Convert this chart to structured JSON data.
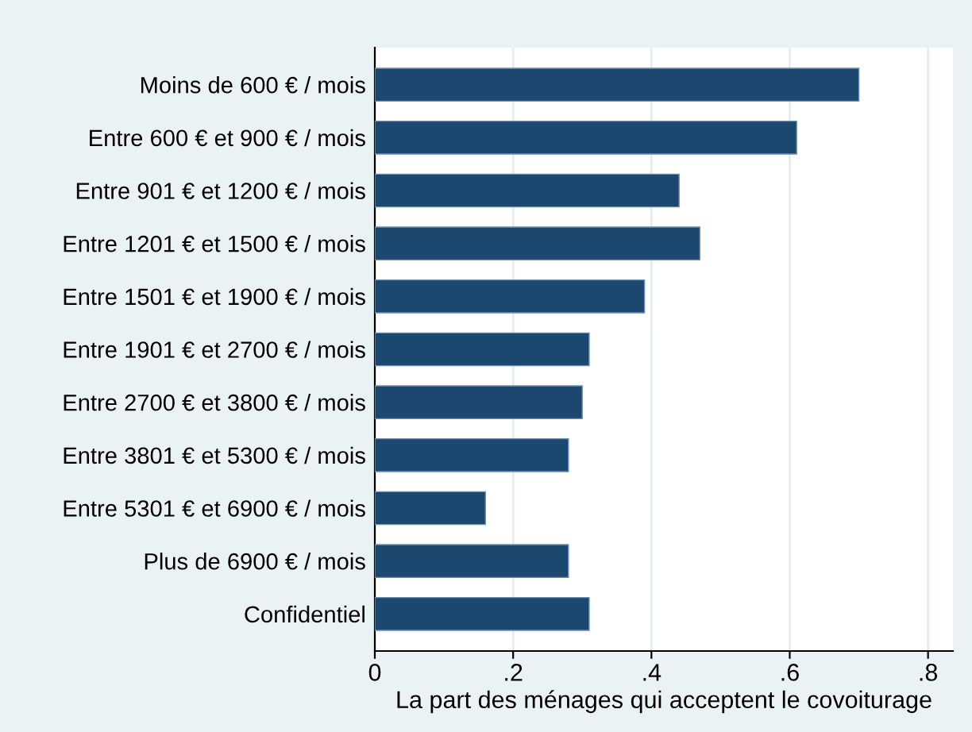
{
  "chart_data": {
    "type": "bar",
    "orientation": "horizontal",
    "xlabel": "La part des ménages qui acceptent le covoiturage",
    "categories": [
      "Moins de 600 € / mois",
      "Entre 600 € et 900 € / mois",
      "Entre 901 € et 1200 € / mois",
      "Entre 1201 € et 1500 € / mois",
      "Entre 1501 € et 1900 € / mois",
      "Entre 1901 € et 2700 € / mois",
      "Entre 2700 € et 3800 € / mois",
      "Entre 3801 € et 5300 € / mois",
      "Entre 5301 € et 6900 € / mois",
      "Plus de 6900 € / mois",
      "Confidentiel"
    ],
    "values": [
      0.7,
      0.61,
      0.44,
      0.47,
      0.39,
      0.31,
      0.3,
      0.28,
      0.16,
      0.28,
      0.31
    ],
    "color": "#1c476f",
    "xlim": [
      0,
      0.836
    ],
    "xticks": [
      0,
      {
        "value": 0.2,
        "label": ".2"
      },
      {
        "value": 0.4,
        "label": ".4"
      },
      {
        "value": 0.6,
        "label": ".6"
      },
      {
        "value": 0.8,
        "label": ".8"
      }
    ],
    "grid": "x"
  }
}
